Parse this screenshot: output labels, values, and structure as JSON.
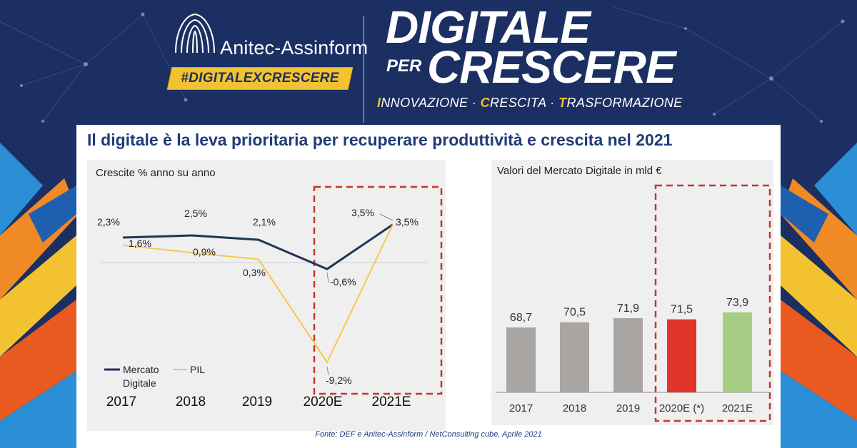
{
  "header": {
    "brand_name": "Anitec-Assinform",
    "hashtag": "#DIGITALEXCRESCERE",
    "campaign_line1": "DIGITALE",
    "campaign_per": "PER",
    "campaign_line2": "CRESCERE",
    "tagline_parts": [
      {
        "initial": "I",
        "rest": "NNOVAZIONE"
      },
      {
        "initial": "C",
        "rest": "RESCITA"
      },
      {
        "initial": "T",
        "rest": "RASFORMAZIONE"
      }
    ],
    "tagline_sep": " · "
  },
  "main_title": "Il digitale è la leva prioritaria per recuperare produttività e crescita nel 2021",
  "source_note": "Fonte: DEF  e Anitec-Assinform / NetConsulting cube, Aprile  2021",
  "colors": {
    "background": "#1b2f63",
    "accent_yellow": "#f2c230",
    "line_digitale": "#1f3557",
    "line_pil": "#f5c94a",
    "bar_grey": "#a8a5a3",
    "bar_red": "#e1342a",
    "bar_green": "#a8ce86",
    "highlight_box": "#c0392b"
  },
  "chart_data": [
    {
      "type": "line",
      "title": "Crescite % anno su anno",
      "categories": [
        "2017",
        "2018",
        "2019",
        "2020E",
        "2021E"
      ],
      "series": [
        {
          "name": "Mercato Digitale",
          "values": [
            2.3,
            2.5,
            2.1,
            -0.6,
            3.5
          ],
          "labels": [
            "2,3%",
            "2,5%",
            "2,1%",
            "-0,6%",
            "3,5%"
          ]
        },
        {
          "name": "PIL",
          "values": [
            1.6,
            0.9,
            0.3,
            -9.2,
            3.5
          ],
          "labels": [
            "1,6%",
            "0,9%",
            "0,3%",
            "-9,2%",
            "3,5%"
          ]
        }
      ],
      "legend": [
        "Mercato Digitale",
        "PIL"
      ],
      "legend_placement": "bottom-left",
      "highlight": [
        "2020E",
        "2021E"
      ]
    },
    {
      "type": "bar",
      "title": "Valori del Mercato Digitale in mld €",
      "categories": [
        "2017",
        "2018",
        "2019",
        "2020E (*)",
        "2021E"
      ],
      "values": [
        68.7,
        70.5,
        71.9,
        71.5,
        73.9
      ],
      "labels": [
        "68,7",
        "70,5",
        "71,9",
        "71,5",
        "73,9"
      ],
      "bar_colors": [
        "grey",
        "grey",
        "grey",
        "red",
        "green"
      ],
      "highlight": [
        "2020E (*)",
        "2021E"
      ]
    }
  ]
}
